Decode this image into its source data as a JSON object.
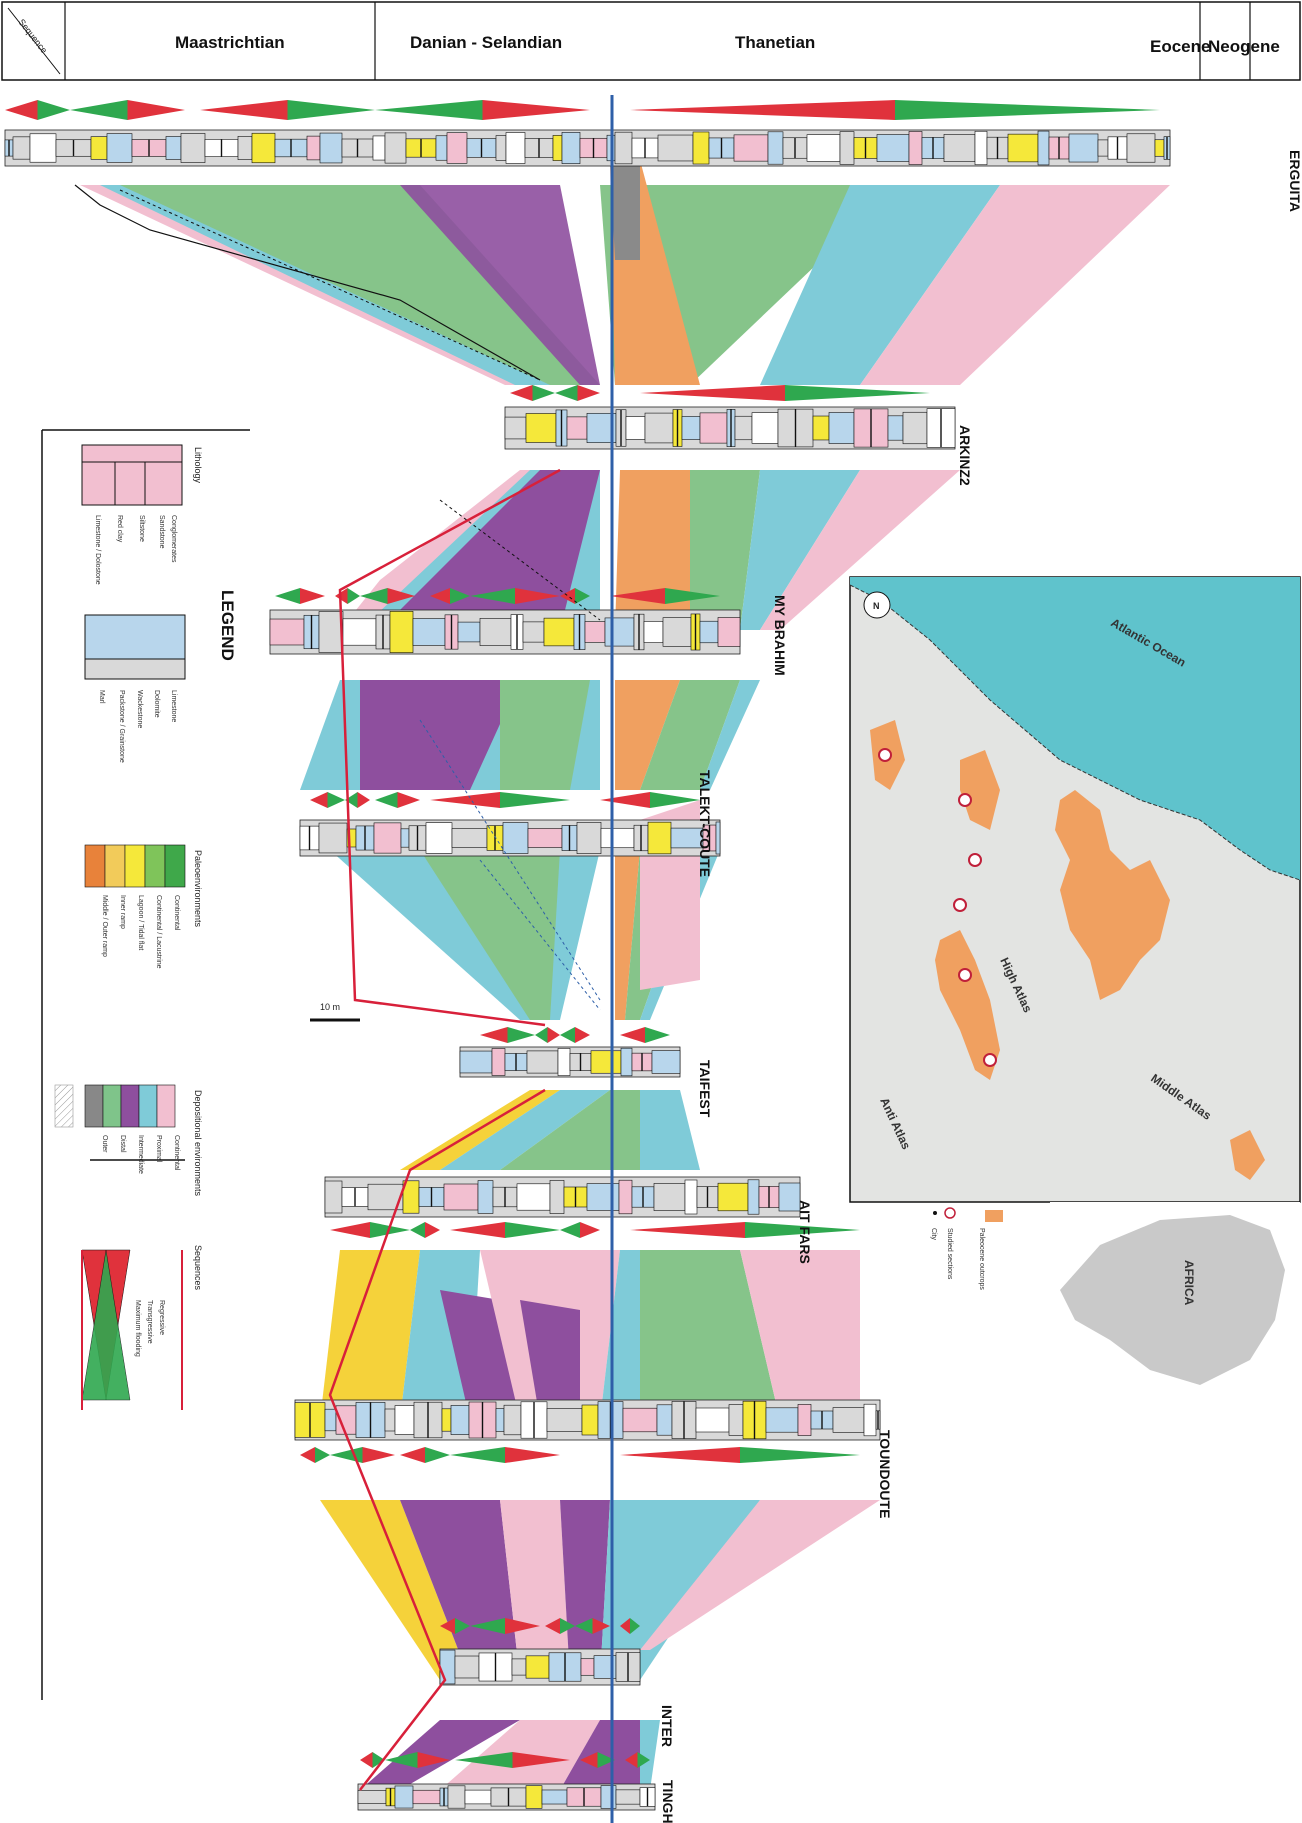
{
  "header": {
    "stage_label": "Sequence",
    "columns": [
      "Maastrichtian",
      "Danian - Selandian",
      "Thanetian",
      "Eocene",
      "Neogene"
    ]
  },
  "wells": [
    {
      "id": "erguita",
      "name": "ERGUITA"
    },
    {
      "id": "akrinz",
      "name": "ARKINZ2"
    },
    {
      "id": "mybrahim",
      "name": "MY BRAHIM"
    },
    {
      "id": "taleztcoute",
      "name": "TALEKT-COUTE"
    },
    {
      "id": "taifest",
      "name": "TAIFEST"
    },
    {
      "id": "aitfars",
      "name": "AIT FARS"
    },
    {
      "id": "toundoute",
      "name": "TOUNDOUTE"
    },
    {
      "id": "inter",
      "name": "INTER"
    },
    {
      "id": "tinghir",
      "name": "TINGHIR"
    }
  ],
  "scale_bar": "10 m",
  "legend": {
    "title": "LEGEND",
    "lithology": {
      "title": "Lithology",
      "items": [
        "Conglomerates",
        "Sandstone",
        "Siltstone",
        "Red clay",
        "Limestone / Dolostone"
      ]
    },
    "facies": {
      "items": [
        "Limestone",
        "Dolomite",
        "Wackestone",
        "Packstone / Grainstone",
        "Marl"
      ]
    },
    "paleoenv": {
      "title": "Paleoenvironments",
      "items": [
        "Continental",
        "Continental / Lacustrine",
        "Lagoon / Tidal flat",
        "Inner ramp",
        "Middle / Outer ramp"
      ],
      "colors": [
        "#E8823A",
        "#F2CB5A",
        "#F5E83A",
        "#7FC45A",
        "#3FA84A"
      ]
    },
    "deposenv": {
      "title": "Depositional environments",
      "items": [
        "Continental",
        "Proximal",
        "Intermediate",
        "Distal",
        "Outer"
      ],
      "colors": [
        "#F2BFD0",
        "#7FCBD8",
        "#8E4F9E",
        "#7FC48A",
        "#888888"
      ]
    },
    "sequences": {
      "title": "Sequences",
      "items": [
        "Regressive",
        "Transgressive",
        "Maximum flooding"
      ]
    }
  },
  "map": {
    "ocean_label": "Atlantic Ocean",
    "ranges": [
      "High Atlas",
      "Anti Atlas",
      "Middle Atlas"
    ],
    "continent_label": "AFRICA",
    "legend": [
      "Paleocene outcrops",
      "Studied sections",
      "City"
    ],
    "colors": {
      "outcrop": "#F0A060",
      "ocean": "#5FC3CC",
      "land": "#E3E4E2"
    }
  },
  "colors": {
    "pink": "#F2BFD0",
    "blue": "#7FCBD8",
    "green": "#86C48A",
    "purple": "#8E4F9E",
    "orange": "#F0A060",
    "yellow": "#F5D23A",
    "gray": "#8A8A8A",
    "tri_red": "#E0323C",
    "tri_green": "#2FA84F",
    "axis_blue": "#2E5FA8"
  }
}
